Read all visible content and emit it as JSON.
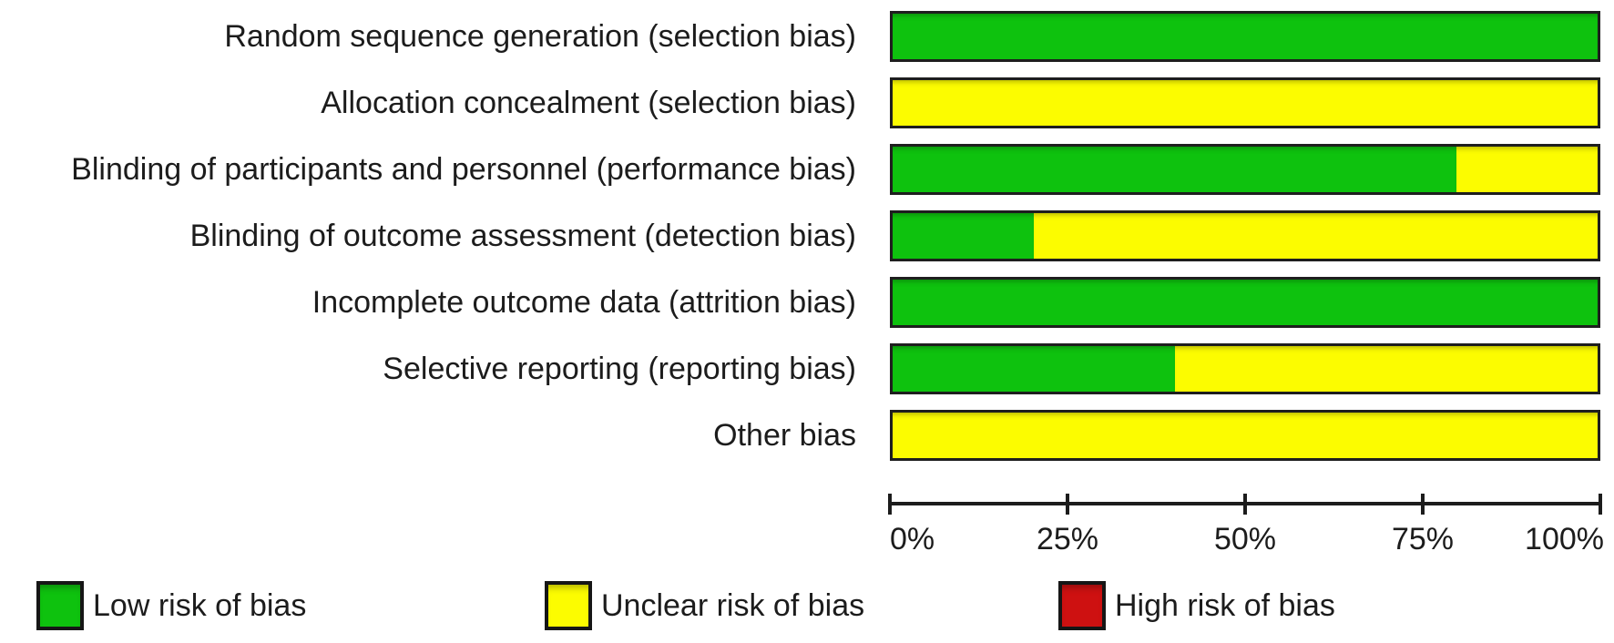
{
  "chart_data": {
    "type": "bar",
    "orientation": "horizontal",
    "stacked": true,
    "title": "",
    "xlabel": "",
    "ylabel": "",
    "categories": [
      "Random sequence generation (selection bias)",
      "Allocation concealment (selection bias)",
      "Blinding of participants and personnel (performance bias)",
      "Blinding of outcome assessment (detection bias)",
      "Incomplete outcome data (attrition bias)",
      "Selective reporting (reporting bias)",
      "Other bias"
    ],
    "series": [
      {
        "name": "Low risk of bias",
        "color": "#0ec20e",
        "values": [
          100,
          0,
          80,
          20,
          100,
          40,
          0
        ]
      },
      {
        "name": "Unclear risk of bias",
        "color": "#fcfc00",
        "values": [
          0,
          100,
          20,
          80,
          0,
          60,
          100
        ]
      },
      {
        "name": "High risk of bias",
        "color": "#ce1111",
        "values": [
          0,
          0,
          0,
          0,
          0,
          0,
          0
        ]
      }
    ],
    "x_ticks": [
      "0%",
      "25%",
      "50%",
      "75%",
      "100%"
    ],
    "xlim": [
      0,
      100
    ],
    "grid": false,
    "legend_position": "bottom"
  }
}
